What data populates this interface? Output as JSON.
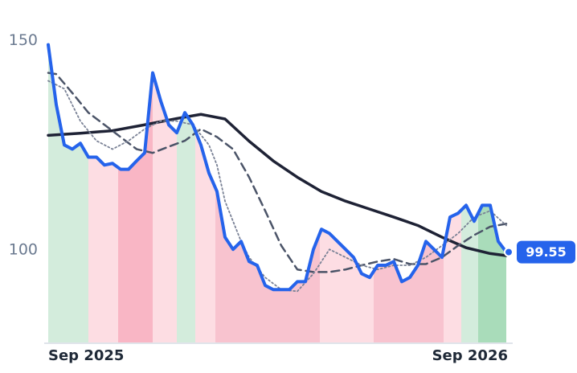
{
  "chart_data": {
    "type": "line",
    "ylim": [
      78,
      152
    ],
    "yticks": [
      100,
      150
    ],
    "xlim": [
      0,
      57
    ],
    "xticks": [
      {
        "value": 0,
        "label": "Sep 2025"
      },
      {
        "value": 57,
        "label": "Sep 2026"
      }
    ],
    "bands": [
      {
        "start": 0,
        "end": 5,
        "color": "#d3ecdc"
      },
      {
        "start": 5,
        "end": 8.7,
        "color": "#fddde3"
      },
      {
        "start": 8.7,
        "end": 13,
        "color": "#f9b6c5"
      },
      {
        "start": 13,
        "end": 16,
        "color": "#fddde3"
      },
      {
        "start": 16,
        "end": 18.3,
        "color": "#d3ecdc"
      },
      {
        "start": 18.3,
        "end": 20.8,
        "color": "#fddde3"
      },
      {
        "start": 20.8,
        "end": 33.8,
        "color": "#f8c3cf"
      },
      {
        "start": 33.8,
        "end": 40.5,
        "color": "#fddde3"
      },
      {
        "start": 40.5,
        "end": 49.2,
        "color": "#f8c3cf"
      },
      {
        "start": 49.2,
        "end": 51.4,
        "color": "#fddde3"
      },
      {
        "start": 51.4,
        "end": 53.5,
        "color": "#d3ecdc"
      },
      {
        "start": 53.5,
        "end": 57,
        "color": "#a9dcba"
      }
    ],
    "series": [
      {
        "color": "#1e2235",
        "style": "solid",
        "width": 3.5,
        "x": [
          0,
          4,
          8,
          12,
          16,
          19,
          22,
          25,
          28,
          31,
          34,
          37,
          40,
          43,
          46,
          49,
          52,
          55,
          57
        ],
        "values": [
          127.4,
          127.9,
          128.5,
          129.9,
          131.4,
          132.4,
          131.3,
          126,
          121.3,
          117.4,
          114,
          111.7,
          109.8,
          107.9,
          105.9,
          103.1,
          100.6,
          99.2,
          98.7
        ]
      },
      {
        "color": "#4b5468",
        "style": "dashed",
        "width": 2.5,
        "x": [
          0,
          1,
          3,
          5,
          7,
          9,
          11,
          13,
          15,
          17,
          19,
          21,
          23,
          25,
          27,
          29,
          31,
          33,
          35,
          37,
          39,
          41,
          43,
          45,
          47,
          49,
          51,
          53,
          55,
          57
        ],
        "values": [
          142.3,
          142,
          137.5,
          132.8,
          129.9,
          127,
          124.1,
          123.2,
          124.7,
          126.1,
          128.9,
          127,
          124.1,
          117.4,
          109.4,
          101.1,
          95.4,
          94.8,
          94.8,
          95.4,
          96.4,
          97.3,
          97.9,
          96.7,
          96.7,
          98.3,
          101.1,
          103.6,
          105.6,
          106.3
        ]
      },
      {
        "color": "#7a8296",
        "style": "dotted",
        "width": 1.8,
        "x": [
          0,
          2,
          4,
          6,
          8,
          10,
          12,
          14,
          16,
          18,
          20,
          21,
          22,
          23,
          24,
          25,
          27,
          29,
          31,
          33,
          35,
          37,
          39,
          41,
          43,
          45,
          47,
          49,
          51,
          53,
          55,
          57
        ],
        "values": [
          140.4,
          138.5,
          130.8,
          126.1,
          124.1,
          126.1,
          128.9,
          130.8,
          130.8,
          129.9,
          125.1,
          120.3,
          111.7,
          106.9,
          102.1,
          98.3,
          93.5,
          90.6,
          90.2,
          94.4,
          100.2,
          98.3,
          96.4,
          95.4,
          96.4,
          96.4,
          98.3,
          101.1,
          104,
          107.9,
          109.4,
          105.9
        ]
      },
      {
        "color": "#2563eb",
        "style": "solid",
        "width": 4,
        "values": [
          149,
          134.7,
          125.1,
          124.1,
          125.5,
          122.2,
          122.2,
          120.3,
          120.7,
          119.3,
          119.3,
          121.3,
          123.2,
          142.3,
          135.6,
          129.9,
          128,
          132.8,
          129.9,
          125.1,
          118.4,
          114,
          103.1,
          100.2,
          102.1,
          97.3,
          96.4,
          91.6,
          90.6,
          90.6,
          90.6,
          92.5,
          92.5,
          100.2,
          105,
          104,
          102.1,
          100.2,
          98.3,
          94.4,
          93.5,
          96.4,
          96.4,
          97.3,
          92.5,
          93.5,
          96.4,
          102.1,
          100.2,
          98.3,
          107.9,
          108.8,
          110.7,
          106.9,
          110.7,
          110.7,
          102.1,
          99.55
        ]
      }
    ]
  }
}
